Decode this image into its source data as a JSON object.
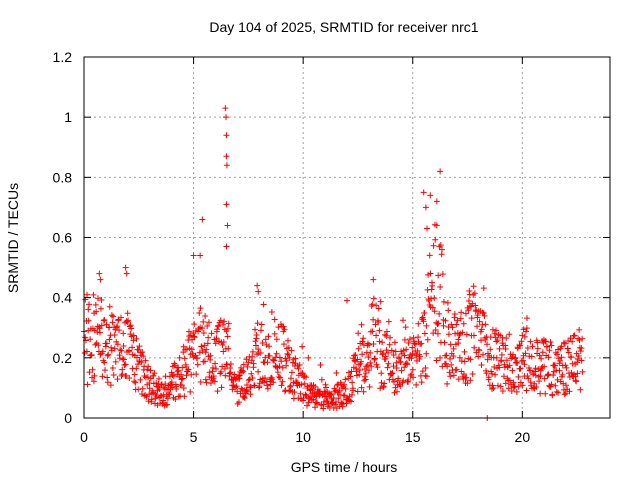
{
  "chart_data": {
    "type": "scatter",
    "title": "Day 104 of 2025, SRMTID for receiver nrc1",
    "xlabel": "GPS time / hours",
    "ylabel": "SRMTID / TECUs",
    "xlim": [
      0,
      24
    ],
    "ylim": [
      0,
      1.2
    ],
    "xticks": [
      0,
      5,
      10,
      15,
      20
    ],
    "yticks": [
      0,
      0.2,
      0.4,
      0.6,
      0.8,
      1,
      1.2
    ],
    "xtick_labels": [
      "0",
      "5",
      "10",
      "15",
      "20"
    ],
    "ytick_labels": [
      "0",
      "0.2",
      "0.4",
      "0.6",
      "0.8",
      "1",
      "1.2"
    ],
    "grid": true,
    "marker": "+",
    "color": "#ff0000",
    "data_end_hours": 22.75,
    "series": [
      {
        "name": "SRMTID",
        "baseline_profile": [
          [
            0.0,
            0.24
          ],
          [
            0.5,
            0.25
          ],
          [
            0.8,
            0.27
          ],
          [
            1.0,
            0.24
          ],
          [
            1.5,
            0.21
          ],
          [
            2.0,
            0.23
          ],
          [
            2.5,
            0.16
          ],
          [
            3.0,
            0.11
          ],
          [
            3.5,
            0.08
          ],
          [
            4.0,
            0.11
          ],
          [
            4.5,
            0.15
          ],
          [
            5.0,
            0.21
          ],
          [
            5.3,
            0.26
          ],
          [
            5.7,
            0.21
          ],
          [
            6.0,
            0.18
          ],
          [
            6.5,
            0.26
          ],
          [
            6.8,
            0.13
          ],
          [
            7.0,
            0.09
          ],
          [
            7.5,
            0.15
          ],
          [
            8.0,
            0.22
          ],
          [
            8.5,
            0.17
          ],
          [
            9.0,
            0.21
          ],
          [
            9.5,
            0.15
          ],
          [
            10.0,
            0.1
          ],
          [
            10.5,
            0.07
          ],
          [
            11.0,
            0.06
          ],
          [
            11.5,
            0.07
          ],
          [
            12.0,
            0.09
          ],
          [
            12.5,
            0.16
          ],
          [
            13.0,
            0.22
          ],
          [
            13.3,
            0.3
          ],
          [
            13.5,
            0.22
          ],
          [
            14.0,
            0.17
          ],
          [
            14.5,
            0.16
          ],
          [
            15.0,
            0.2
          ],
          [
            15.5,
            0.24
          ],
          [
            16.0,
            0.42
          ],
          [
            16.3,
            0.4
          ],
          [
            16.5,
            0.25
          ],
          [
            17.0,
            0.22
          ],
          [
            17.5,
            0.24
          ],
          [
            17.8,
            0.3
          ],
          [
            18.0,
            0.25
          ],
          [
            18.5,
            0.22
          ],
          [
            19.0,
            0.19
          ],
          [
            19.5,
            0.16
          ],
          [
            20.0,
            0.2
          ],
          [
            20.5,
            0.19
          ],
          [
            21.0,
            0.17
          ],
          [
            21.5,
            0.16
          ],
          [
            22.0,
            0.17
          ],
          [
            22.5,
            0.18
          ],
          [
            22.75,
            0.17
          ]
        ],
        "notable_points": [
          [
            0.7,
            0.48
          ],
          [
            0.75,
            0.46
          ],
          [
            1.9,
            0.5
          ],
          [
            1.95,
            0.48
          ],
          [
            5.0,
            0.54
          ],
          [
            5.3,
            0.54
          ],
          [
            5.4,
            0.66
          ],
          [
            6.45,
            1.03
          ],
          [
            6.48,
            1.0
          ],
          [
            6.5,
            0.94
          ],
          [
            6.5,
            0.87
          ],
          [
            6.52,
            0.84
          ],
          [
            6.5,
            0.71
          ],
          [
            6.55,
            0.64
          ],
          [
            6.5,
            0.57
          ],
          [
            7.9,
            0.44
          ],
          [
            7.95,
            0.42
          ],
          [
            12.0,
            0.39
          ],
          [
            13.2,
            0.46
          ],
          [
            15.5,
            0.75
          ],
          [
            15.6,
            0.7
          ],
          [
            15.65,
            0.63
          ],
          [
            15.8,
            0.74
          ],
          [
            16.1,
            0.72
          ],
          [
            16.25,
            0.82
          ],
          [
            17.6,
            0.41
          ],
          [
            18.4,
            0.0
          ]
        ],
        "point_count": 1200
      }
    ]
  }
}
